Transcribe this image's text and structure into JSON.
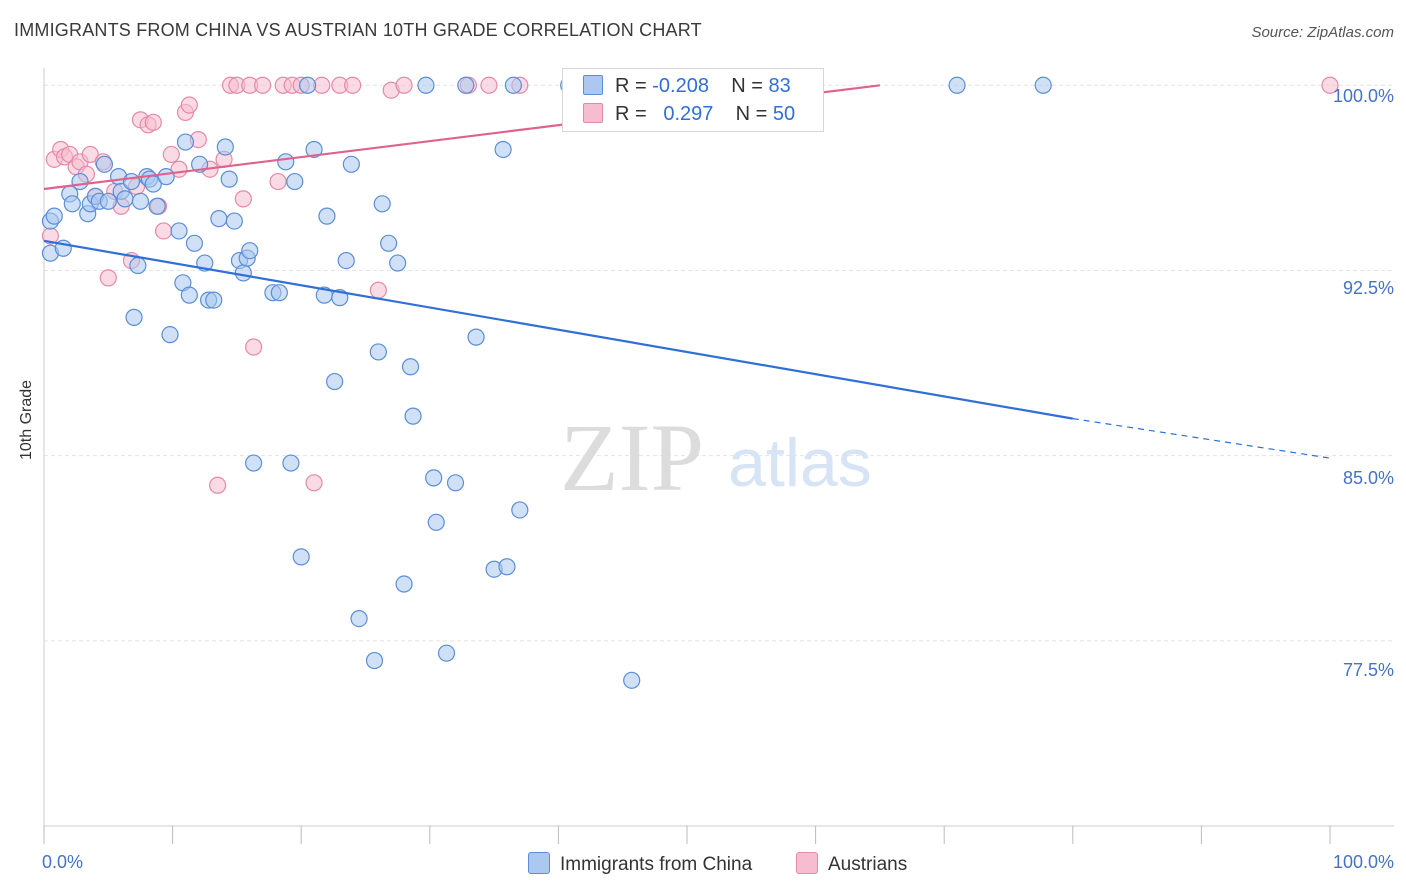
{
  "title": "IMMIGRANTS FROM CHINA VS AUSTRIAN 10TH GRADE CORRELATION CHART",
  "source": "Source: ZipAtlas.com",
  "watermark": {
    "zip": "ZIP",
    "atlas": "atlas"
  },
  "legend": {
    "china": {
      "r_label": "R =",
      "r_value": "-0.208",
      "n_label": "N =",
      "n_value": "83"
    },
    "austria": {
      "r_label": "R =",
      "r_value": "0.297",
      "n_label": "N =",
      "n_value": "50"
    }
  },
  "bottom_legend": {
    "china": "Immigrants from China",
    "austria": "Austrians"
  },
  "colors": {
    "china_fill": "#aac8f0",
    "china_stroke": "#5b8ed6",
    "china_line": "#2f6fd6",
    "austria_fill": "#f6bdd0",
    "austria_stroke": "#e688a8",
    "austria_line": "#e0628c",
    "tick_text": "#4472c4",
    "grid": "#e4e4e4"
  },
  "chart_data": {
    "type": "scatter",
    "title": "IMMIGRANTS FROM CHINA VS AUSTRIAN 10TH GRADE CORRELATION CHART",
    "xlabel": "",
    "ylabel": "10th Grade",
    "xlim": [
      0,
      100
    ],
    "ylim": [
      70.0,
      100.7
    ],
    "x_tick_labels": [
      "0.0%",
      "100.0%"
    ],
    "y_ticks": [
      100.0,
      92.5,
      85.0,
      77.5
    ],
    "y_tick_labels": [
      "100.0%",
      "92.5%",
      "85.0%",
      "77.5%"
    ],
    "series": [
      {
        "name": "Immigrants from China",
        "r": -0.208,
        "n": 83,
        "trend": {
          "x0": 0.0,
          "y0": 93.7,
          "x1": 80.0,
          "y1": 86.5,
          "dash_to_x": 100.0,
          "dash_y": 84.9
        },
        "points": [
          [
            0.5,
            94.5
          ],
          [
            0.5,
            93.2
          ],
          [
            1.5,
            93.4
          ],
          [
            0.8,
            94.7
          ],
          [
            2.0,
            95.6
          ],
          [
            2.2,
            95.2
          ],
          [
            2.8,
            96.1
          ],
          [
            3.4,
            94.8
          ],
          [
            3.6,
            95.2
          ],
          [
            4.0,
            95.5
          ],
          [
            4.3,
            95.3
          ],
          [
            4.7,
            96.8
          ],
          [
            5.0,
            95.3
          ],
          [
            5.8,
            96.3
          ],
          [
            6.0,
            95.7
          ],
          [
            6.3,
            95.4
          ],
          [
            7.3,
            92.7
          ],
          [
            7.0,
            90.6
          ],
          [
            6.8,
            96.1
          ],
          [
            7.5,
            95.3
          ],
          [
            8.0,
            96.3
          ],
          [
            8.2,
            96.2
          ],
          [
            8.5,
            96.0
          ],
          [
            8.8,
            95.1
          ],
          [
            9.5,
            96.3
          ],
          [
            9.8,
            89.9
          ],
          [
            10.5,
            94.1
          ],
          [
            10.8,
            92.0
          ],
          [
            11.3,
            91.5
          ],
          [
            11.0,
            97.7
          ],
          [
            11.7,
            93.6
          ],
          [
            12.1,
            96.8
          ],
          [
            12.5,
            92.8
          ],
          [
            12.8,
            91.3
          ],
          [
            13.2,
            91.3
          ],
          [
            13.6,
            94.6
          ],
          [
            14.1,
            97.5
          ],
          [
            14.4,
            96.2
          ],
          [
            14.8,
            94.5
          ],
          [
            15.2,
            92.9
          ],
          [
            15.5,
            92.4
          ],
          [
            15.8,
            93.0
          ],
          [
            16.0,
            93.3
          ],
          [
            16.3,
            84.7
          ],
          [
            17.8,
            91.6
          ],
          [
            18.3,
            91.6
          ],
          [
            18.8,
            96.9
          ],
          [
            19.2,
            84.7
          ],
          [
            19.5,
            96.1
          ],
          [
            20.0,
            80.9
          ],
          [
            20.5,
            100.0
          ],
          [
            21.0,
            97.4
          ],
          [
            21.8,
            91.5
          ],
          [
            22.0,
            94.7
          ],
          [
            22.6,
            88.0
          ],
          [
            23.0,
            91.4
          ],
          [
            23.5,
            92.9
          ],
          [
            23.9,
            96.8
          ],
          [
            24.5,
            78.4
          ],
          [
            25.7,
            76.7
          ],
          [
            26.0,
            89.2
          ],
          [
            26.3,
            95.2
          ],
          [
            26.8,
            93.6
          ],
          [
            27.5,
            92.8
          ],
          [
            28.0,
            79.8
          ],
          [
            28.5,
            88.6
          ],
          [
            28.7,
            86.6
          ],
          [
            29.7,
            100.0
          ],
          [
            30.3,
            84.1
          ],
          [
            30.5,
            82.3
          ],
          [
            31.3,
            77.0
          ],
          [
            32.0,
            83.9
          ],
          [
            32.8,
            100.0
          ],
          [
            33.6,
            89.8
          ],
          [
            35.0,
            80.4
          ],
          [
            35.7,
            97.4
          ],
          [
            36.0,
            80.5
          ],
          [
            36.5,
            100.0
          ],
          [
            37.0,
            82.8
          ],
          [
            40.8,
            100.0
          ],
          [
            45.7,
            75.9
          ],
          [
            71.0,
            100.0
          ],
          [
            77.7,
            100.0
          ]
        ]
      },
      {
        "name": "Austrians",
        "r": 0.297,
        "n": 50,
        "trend": {
          "x0": 0.0,
          "y0": 95.8,
          "x1": 65.0,
          "y1": 100.0
        },
        "points": [
          [
            0.5,
            93.9
          ],
          [
            0.8,
            97.0
          ],
          [
            1.3,
            97.4
          ],
          [
            1.6,
            97.1
          ],
          [
            2.0,
            97.2
          ],
          [
            2.5,
            96.7
          ],
          [
            2.8,
            96.9
          ],
          [
            3.3,
            96.4
          ],
          [
            3.6,
            97.2
          ],
          [
            4.0,
            95.5
          ],
          [
            4.6,
            96.9
          ],
          [
            5.0,
            92.2
          ],
          [
            5.5,
            95.7
          ],
          [
            6.0,
            95.1
          ],
          [
            6.8,
            92.9
          ],
          [
            7.2,
            95.9
          ],
          [
            7.5,
            98.6
          ],
          [
            8.1,
            98.4
          ],
          [
            8.5,
            98.5
          ],
          [
            8.9,
            95.1
          ],
          [
            9.3,
            94.1
          ],
          [
            9.9,
            97.2
          ],
          [
            10.5,
            96.6
          ],
          [
            11.0,
            98.9
          ],
          [
            11.3,
            99.2
          ],
          [
            12.0,
            97.8
          ],
          [
            12.9,
            96.6
          ],
          [
            13.5,
            83.8
          ],
          [
            14.0,
            97.0
          ],
          [
            14.5,
            100.0
          ],
          [
            15.0,
            100.0
          ],
          [
            15.5,
            95.4
          ],
          [
            16.0,
            100.0
          ],
          [
            16.3,
            89.4
          ],
          [
            17.0,
            100.0
          ],
          [
            18.2,
            96.1
          ],
          [
            18.6,
            100.0
          ],
          [
            19.3,
            100.0
          ],
          [
            20.0,
            100.0
          ],
          [
            21.0,
            83.9
          ],
          [
            21.6,
            100.0
          ],
          [
            23.0,
            100.0
          ],
          [
            24.0,
            100.0
          ],
          [
            26.0,
            91.7
          ],
          [
            27.0,
            99.8
          ],
          [
            28.0,
            100.0
          ],
          [
            33.0,
            100.0
          ],
          [
            34.6,
            100.0
          ],
          [
            37.0,
            100.0
          ],
          [
            100.0,
            100.0
          ]
        ]
      }
    ]
  }
}
